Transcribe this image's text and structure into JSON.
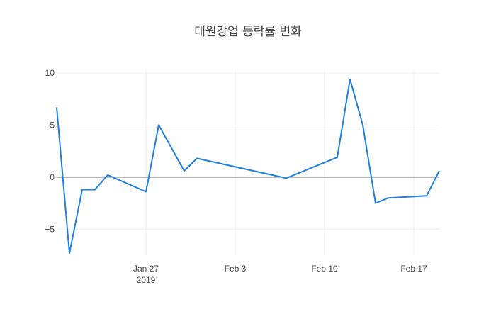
{
  "chart_data": {
    "type": "line",
    "title": "대원강업 등락률 변화",
    "xlabel": "",
    "ylabel": "",
    "x_tick_labels": [
      {
        "date": "2019-01-27",
        "label": "Jan 27",
        "sublabel": "2019"
      },
      {
        "date": "2019-02-03",
        "label": "Feb 3",
        "sublabel": ""
      },
      {
        "date": "2019-02-10",
        "label": "Feb 10",
        "sublabel": ""
      },
      {
        "date": "2019-02-17",
        "label": "Feb 17",
        "sublabel": ""
      }
    ],
    "y_ticks": [
      {
        "value": 10,
        "label": "10"
      },
      {
        "value": 5,
        "label": "5"
      },
      {
        "value": 0,
        "label": "0"
      },
      {
        "value": -5,
        "label": "−5"
      }
    ],
    "xlim": [
      "2019-01-20",
      "2019-02-19"
    ],
    "ylim": [
      -7.5,
      10.2
    ],
    "grid": true,
    "series": [
      {
        "color": "#1f7fe0",
        "points": [
          {
            "x": "2019-01-20",
            "y": 6.7
          },
          {
            "x": "2019-01-21",
            "y": -7.3
          },
          {
            "x": "2019-01-22",
            "y": -1.2
          },
          {
            "x": "2019-01-23",
            "y": -1.2
          },
          {
            "x": "2019-01-24",
            "y": 0.2
          },
          {
            "x": "2019-01-27",
            "y": -1.4
          },
          {
            "x": "2019-01-28",
            "y": 5.0
          },
          {
            "x": "2019-01-30",
            "y": 0.6
          },
          {
            "x": "2019-01-31",
            "y": 1.8
          },
          {
            "x": "2019-02-07",
            "y": -0.1
          },
          {
            "x": "2019-02-11",
            "y": 1.9
          },
          {
            "x": "2019-02-12",
            "y": 9.4
          },
          {
            "x": "2019-02-13",
            "y": 5.0
          },
          {
            "x": "2019-02-14",
            "y": -2.5
          },
          {
            "x": "2019-02-15",
            "y": -2.0
          },
          {
            "x": "2019-02-18",
            "y": -1.8
          },
          {
            "x": "2019-02-19",
            "y": 0.6
          }
        ]
      }
    ]
  }
}
